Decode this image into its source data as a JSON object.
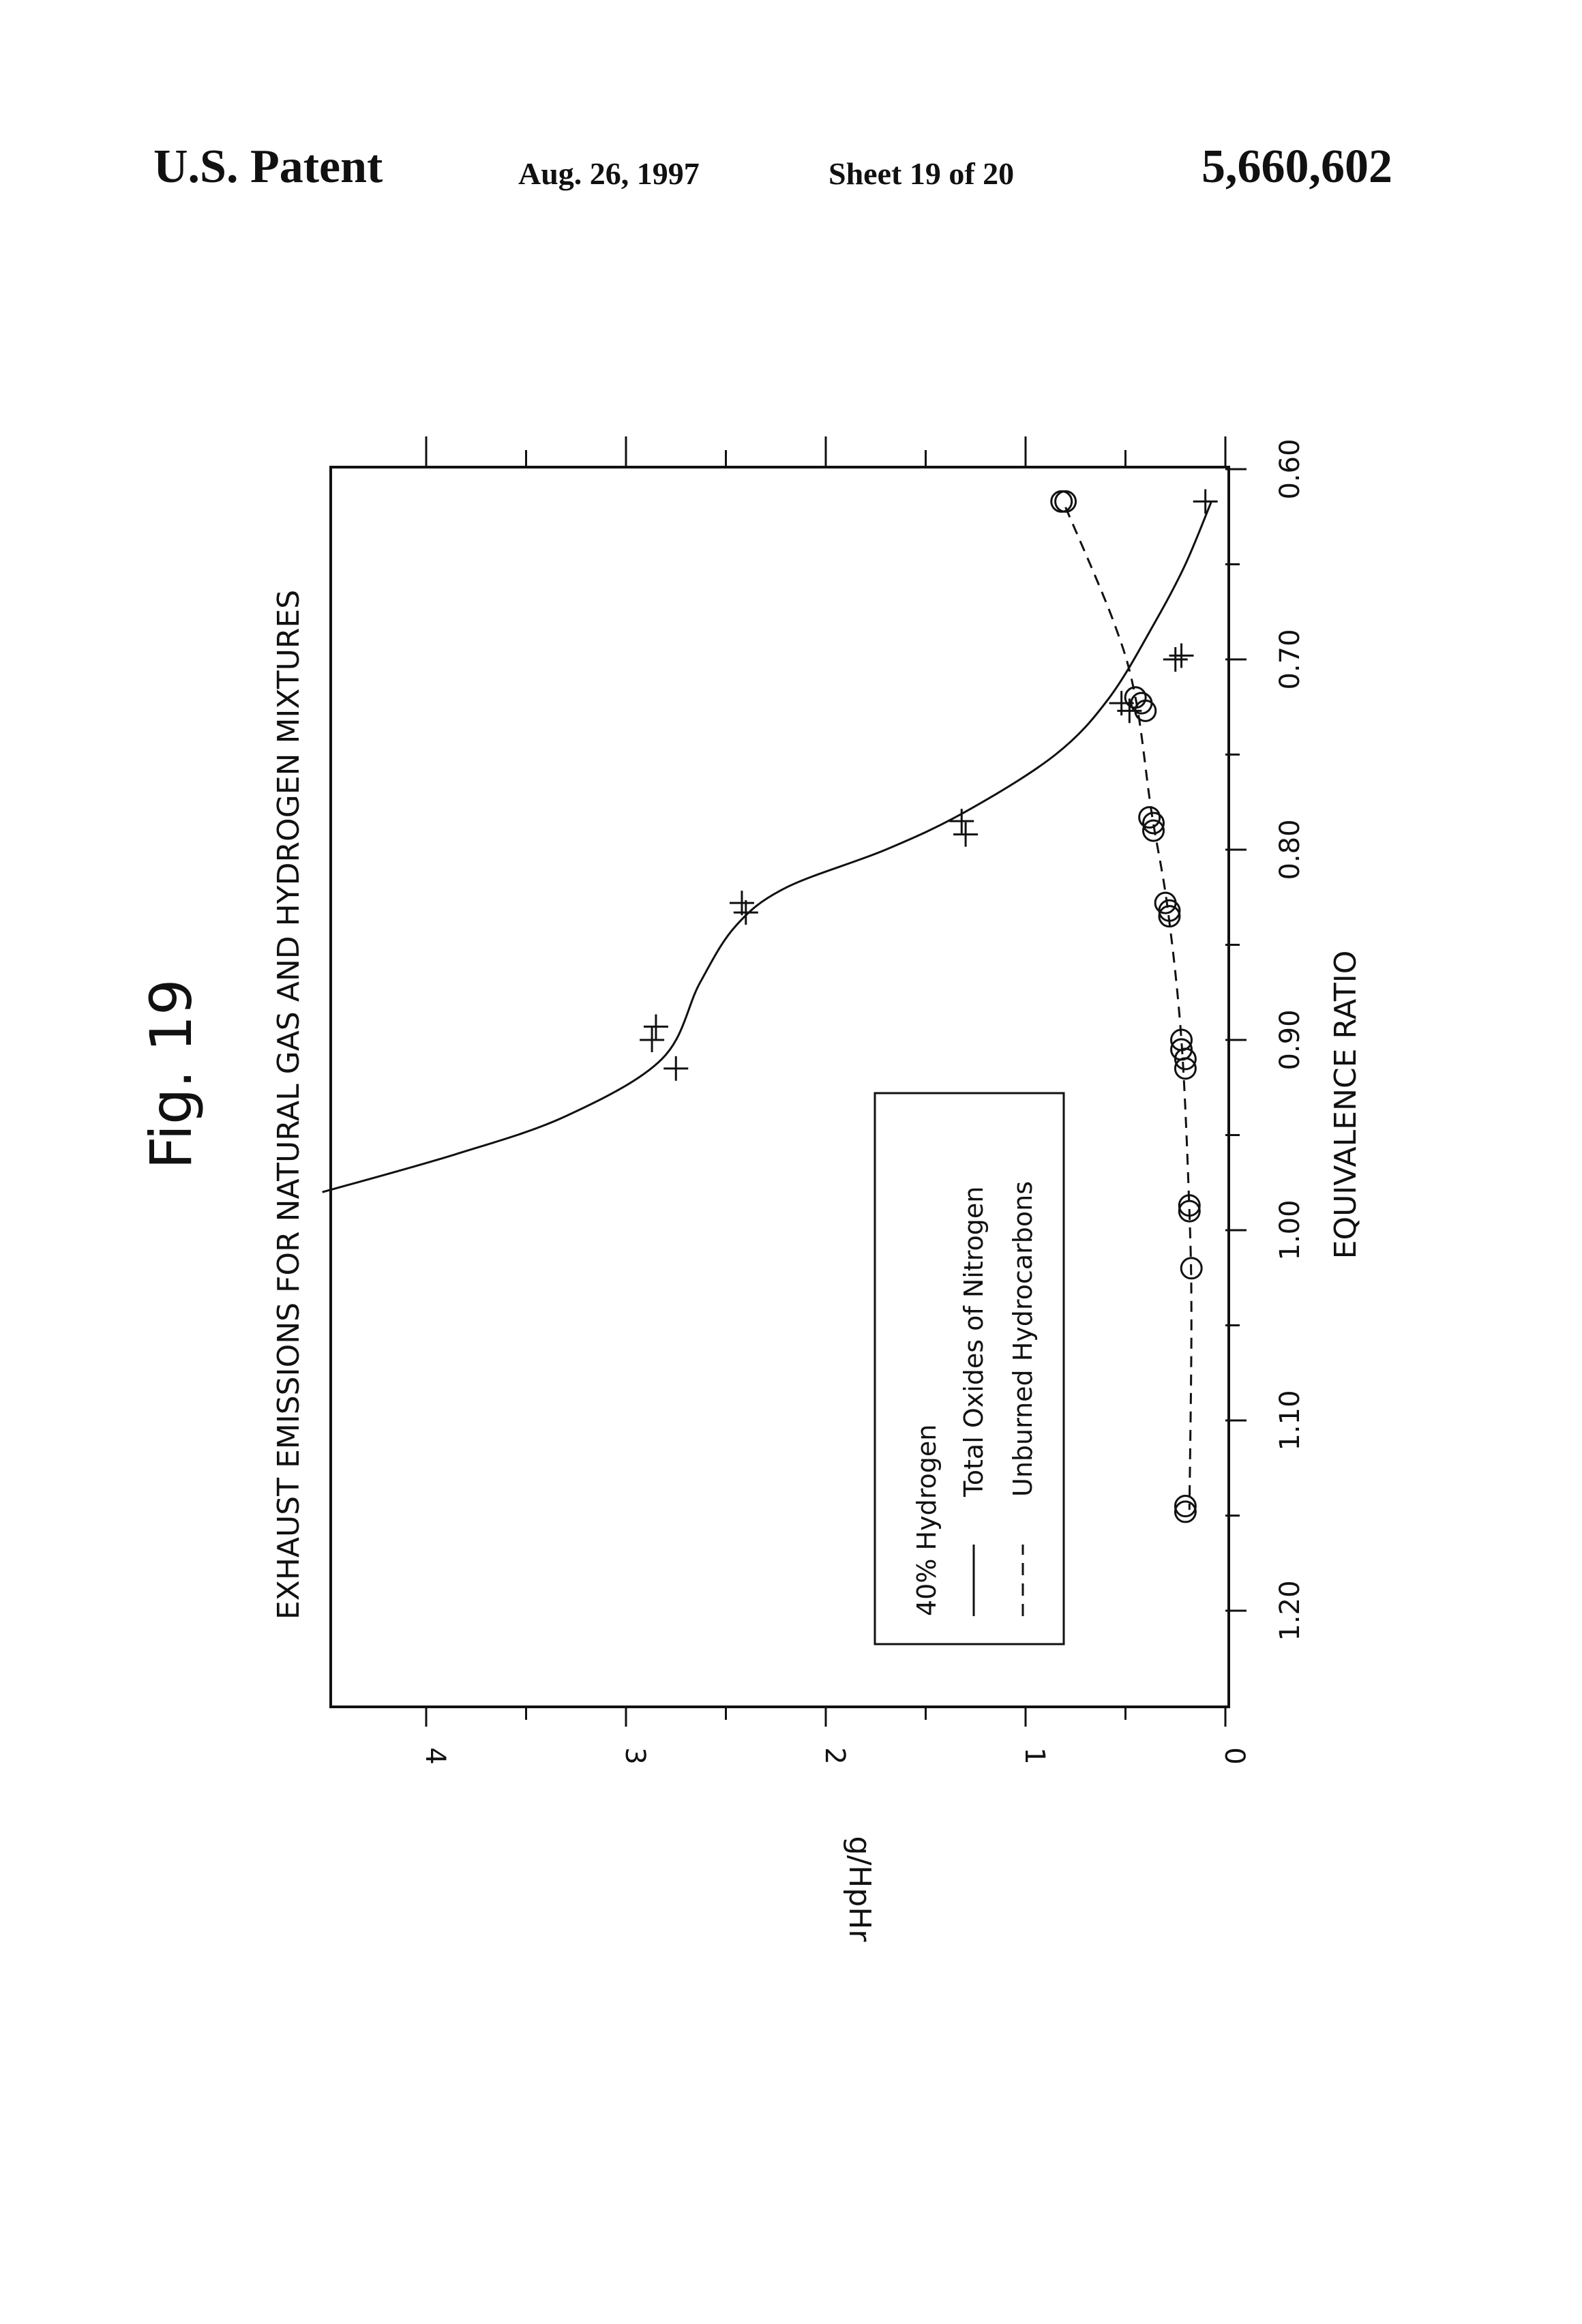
{
  "header": {
    "patent_label": "U.S. Patent",
    "date": "Aug. 26, 1997",
    "sheet": "Sheet 19 of 20",
    "patent_number": "5,660,602"
  },
  "chart_data": {
    "type": "scatter",
    "figure_label": "Fig. 19",
    "title": "EXHAUST EMISSIONS FOR NATURAL GAS AND HYDROGEN MIXTURES",
    "xlabel": "EQUIVALENCE RATIO",
    "ylabel": "g/HpHr",
    "xlim": [
      0.6,
      1.25
    ],
    "ylim": [
      0,
      4.5
    ],
    "x_ticks": [
      0.6,
      0.7,
      0.8,
      0.9,
      1.0,
      1.1,
      1.2
    ],
    "x_tick_labels": [
      "0.60",
      "0.70",
      "0.80",
      "0.90",
      "1.00",
      "1.10",
      "1.20"
    ],
    "y_ticks": [
      0,
      1,
      2,
      3,
      4
    ],
    "y_tick_labels": [
      "0",
      "1",
      "2",
      "3",
      "4"
    ],
    "grid": false,
    "legend": {
      "placement": "bottom-right",
      "title": "40% Hydrogen",
      "entries": [
        "Total Oxides of Nitrogen",
        "Unburned Hydrocarbons"
      ]
    },
    "series": [
      {
        "name": "Total Oxides of Nitrogen",
        "marker": "plus",
        "line_style": "solid",
        "points": [
          [
            0.617,
            0.1
          ],
          [
            0.698,
            0.22
          ],
          [
            0.7,
            0.25
          ],
          [
            0.723,
            0.52
          ],
          [
            0.727,
            0.48
          ],
          [
            0.785,
            1.32
          ],
          [
            0.792,
            1.3
          ],
          [
            0.828,
            2.42
          ],
          [
            0.833,
            2.4
          ],
          [
            0.893,
            2.85
          ],
          [
            0.9,
            2.87
          ],
          [
            0.915,
            2.75
          ]
        ],
        "curve": [
          [
            0.617,
            0.07
          ],
          [
            0.65,
            0.2
          ],
          [
            0.68,
            0.35
          ],
          [
            0.72,
            0.58
          ],
          [
            0.75,
            0.85
          ],
          [
            0.78,
            1.3
          ],
          [
            0.8,
            1.7
          ],
          [
            0.82,
            2.2
          ],
          [
            0.84,
            2.45
          ],
          [
            0.87,
            2.63
          ],
          [
            0.91,
            2.82
          ],
          [
            0.94,
            3.3
          ],
          [
            0.96,
            3.85
          ],
          [
            0.98,
            4.52
          ]
        ]
      },
      {
        "name": "Unburned Hydrocarbons",
        "marker": "circle",
        "line_style": "dashed",
        "points": [
          [
            0.617,
            0.82
          ],
          [
            0.617,
            0.8
          ],
          [
            0.72,
            0.45
          ],
          [
            0.723,
            0.42
          ],
          [
            0.727,
            0.4
          ],
          [
            0.783,
            0.38
          ],
          [
            0.786,
            0.36
          ],
          [
            0.79,
            0.36
          ],
          [
            0.828,
            0.3
          ],
          [
            0.832,
            0.28
          ],
          [
            0.835,
            0.28
          ],
          [
            0.9,
            0.22
          ],
          [
            0.905,
            0.22
          ],
          [
            0.91,
            0.2
          ],
          [
            0.915,
            0.2
          ],
          [
            0.987,
            0.18
          ],
          [
            0.99,
            0.18
          ],
          [
            1.02,
            0.17
          ],
          [
            1.145,
            0.2
          ],
          [
            1.148,
            0.2
          ]
        ],
        "curve": [
          [
            0.62,
            0.8
          ],
          [
            0.68,
            0.56
          ],
          [
            0.72,
            0.45
          ],
          [
            0.78,
            0.37
          ],
          [
            0.83,
            0.29
          ],
          [
            0.9,
            0.22
          ],
          [
            0.99,
            0.18
          ],
          [
            1.05,
            0.17
          ],
          [
            1.147,
            0.18
          ]
        ]
      }
    ]
  }
}
